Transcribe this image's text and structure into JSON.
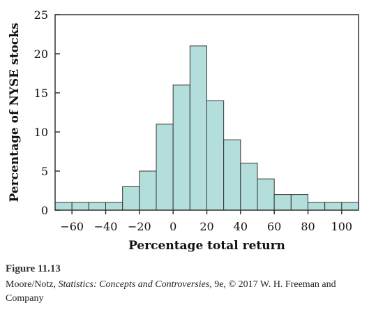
{
  "chart_data": {
    "type": "bar",
    "subtype": "histogram",
    "xlabel": "Percentage total return",
    "ylabel": "Percentage of NYSE stocks",
    "xlim": [
      -70,
      110
    ],
    "ylim": [
      0,
      25
    ],
    "bin_width": 10,
    "bin_starts": [
      -70,
      -60,
      -50,
      -40,
      -30,
      -20,
      -10,
      0,
      10,
      20,
      30,
      40,
      50,
      60,
      70,
      80,
      90,
      100
    ],
    "values": [
      1,
      1,
      1,
      1,
      3,
      5,
      11,
      16,
      21,
      14,
      9,
      6,
      4,
      2,
      2,
      1,
      1,
      1
    ],
    "xticks": [
      -60,
      -40,
      -20,
      0,
      20,
      40,
      60,
      80,
      100
    ],
    "xtick_labels": [
      "−60",
      "−40",
      "−20",
      "0",
      "20",
      "40",
      "60",
      "80",
      "100"
    ],
    "yticks": [
      0,
      5,
      10,
      15,
      20,
      25
    ],
    "ytick_labels": [
      "0",
      "5",
      "10",
      "15",
      "20",
      "25"
    ],
    "bar_color": "#b3dedb",
    "edge_color": "#333333",
    "grid": false
  },
  "caption": {
    "figure_number": "Figure 11.13",
    "credit_prefix": "Moore/Notz, ",
    "credit_title": "Statistics: Concepts and Controversies",
    "credit_suffix": ", 9e, © 2017 W. H. Freeman and Company"
  }
}
